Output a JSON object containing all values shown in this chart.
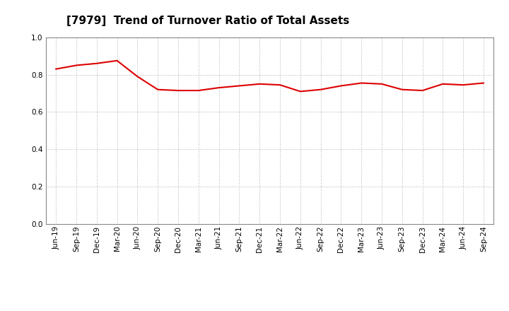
{
  "title": "[7979]  Trend of Turnover Ratio of Total Assets",
  "labels": [
    "Jun-19",
    "Sep-19",
    "Dec-19",
    "Mar-20",
    "Jun-20",
    "Sep-20",
    "Dec-20",
    "Mar-21",
    "Jun-21",
    "Sep-21",
    "Dec-21",
    "Mar-22",
    "Jun-22",
    "Sep-22",
    "Dec-22",
    "Mar-23",
    "Jun-23",
    "Sep-23",
    "Dec-23",
    "Mar-24",
    "Jun-24",
    "Sep-24"
  ],
  "values": [
    0.83,
    0.85,
    0.86,
    0.875,
    0.79,
    0.72,
    0.715,
    0.715,
    0.73,
    0.74,
    0.75,
    0.745,
    0.71,
    0.72,
    0.74,
    0.755,
    0.75,
    0.72,
    0.715,
    0.75,
    0.745,
    0.755
  ],
  "ylim": [
    0.0,
    1.0
  ],
  "yticks": [
    0.0,
    0.2,
    0.4,
    0.6,
    0.8,
    1.0
  ],
  "line_color": "#dd0000",
  "line_width": 1.5,
  "bg_color": "#ffffff",
  "plot_bg_color": "#ffffff",
  "grid_color": "#999999",
  "title_fontsize": 11,
  "tick_fontsize": 7.5
}
